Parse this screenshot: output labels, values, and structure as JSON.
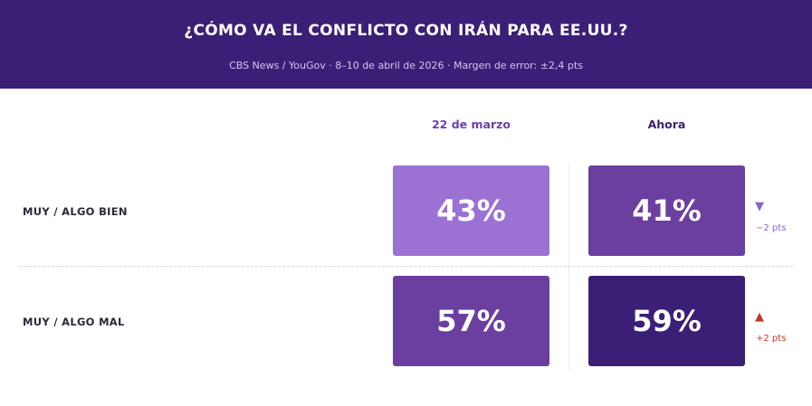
{
  "header": {
    "title": "¿CÓMO VA EL CONFLICTO CON IRÁN PARA EE.UU.?",
    "subtitle": "CBS News / YouGov  ·  8–10 de abril de 2026  ·  Margen de error: ±2,4 pts"
  },
  "columns": {
    "previous": "22 de marzo",
    "current": "Ahora"
  },
  "colors": {
    "header_bg": "#3b1f77",
    "cell_light": "#9b72d3",
    "cell_mid": "#6b3fa0",
    "cell_dark": "#3b1f77",
    "down_arrow": "#8a64c8",
    "up_arrow": "#c0392b"
  },
  "chart_data": {
    "type": "table",
    "categories": [
      "MUY / ALGO BIEN",
      "MUY / ALGO MAL"
    ],
    "series": [
      {
        "name": "22 de marzo",
        "values": [
          43,
          57
        ]
      },
      {
        "name": "Ahora",
        "values": [
          41,
          59
        ]
      }
    ],
    "cells": {
      "bien_prev": "43%",
      "bien_now": "41%",
      "mal_prev": "57%",
      "mal_now": "59%"
    },
    "changes": [
      {
        "arrow": "▼",
        "text": "−2 pts",
        "direction": "down"
      },
      {
        "arrow": "▲",
        "text": "+2 pts",
        "direction": "up"
      }
    ]
  }
}
